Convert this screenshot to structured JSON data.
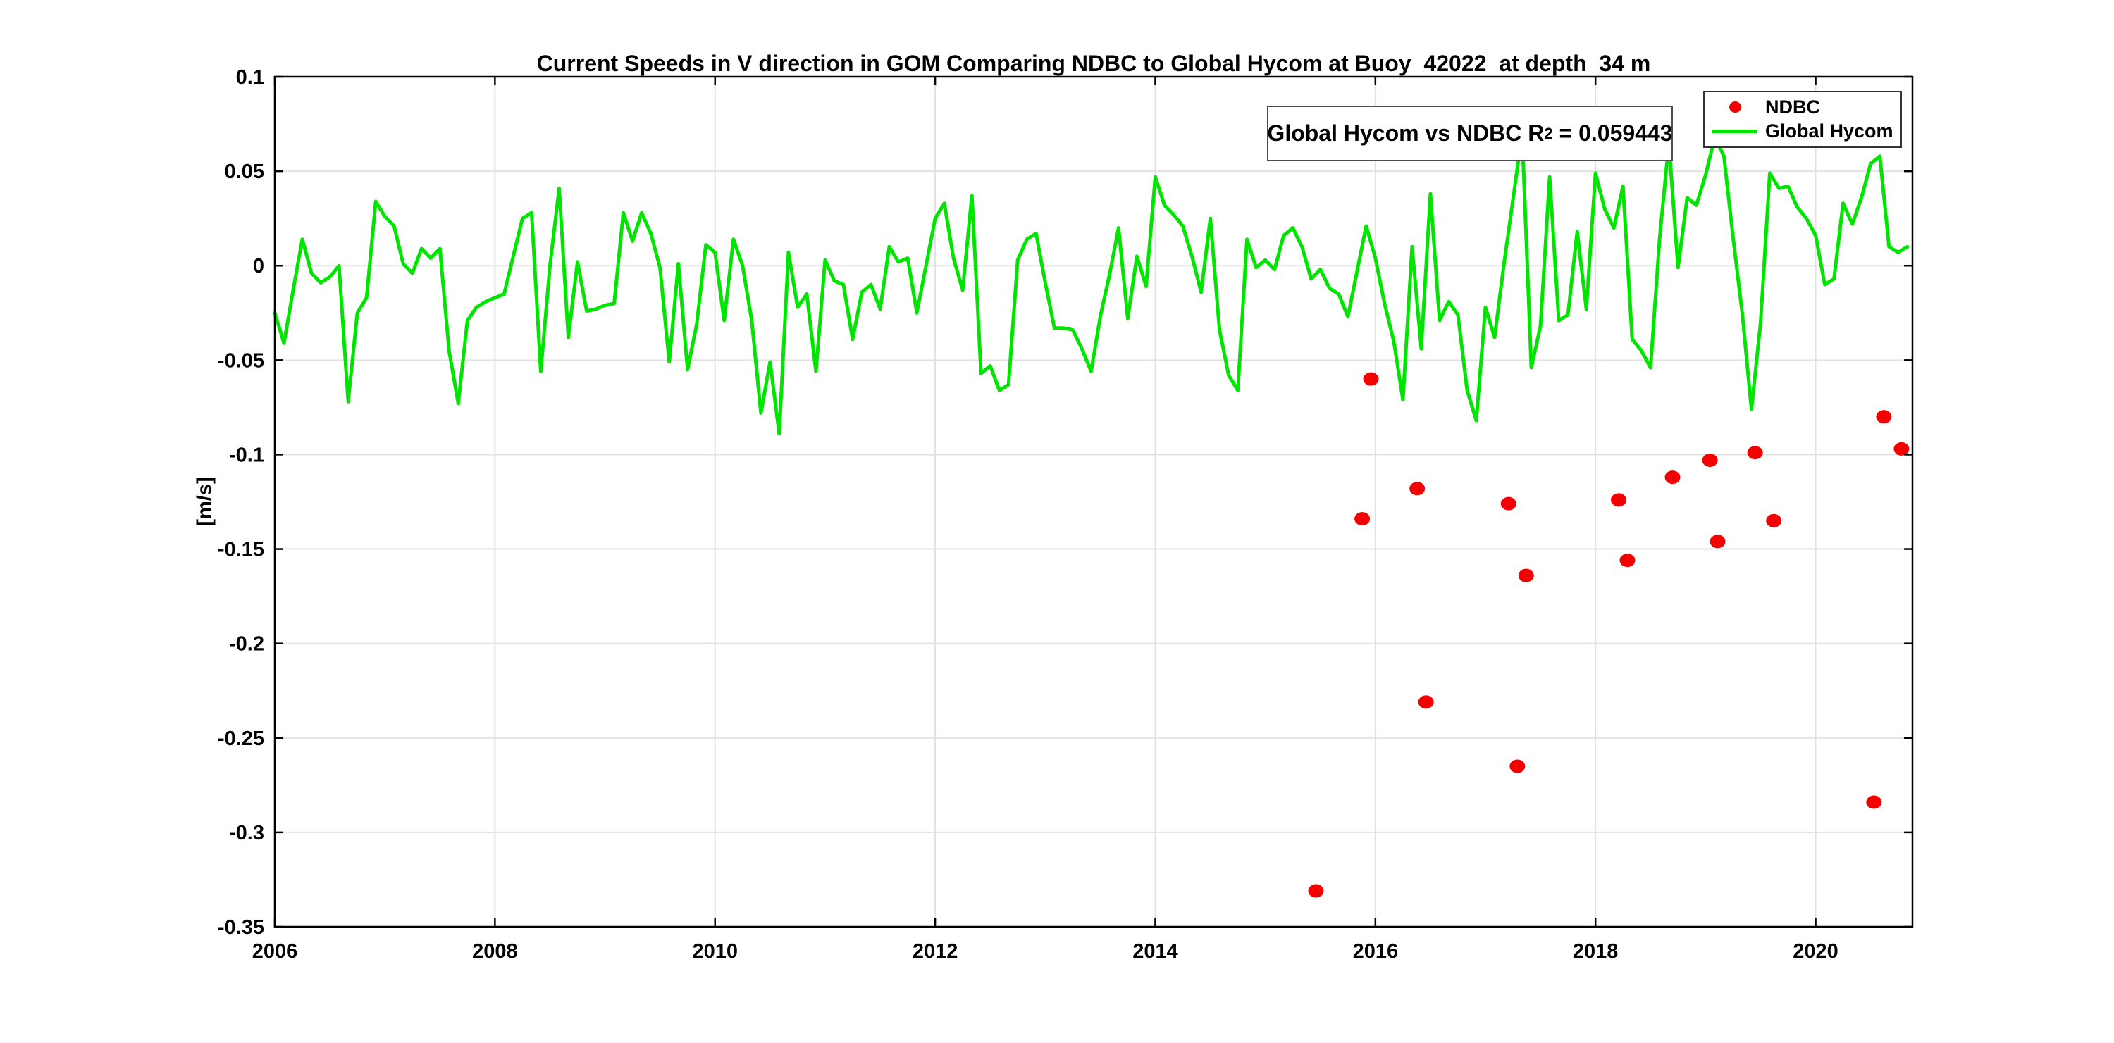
{
  "title": "Current Speeds in V direction in GOM Comparing NDBC to Global Hycom at Buoy  42022  at depth  34 m",
  "axes": {
    "ylabel": "[m/s]",
    "xtick_labels": [
      "2006",
      "2008",
      "2010",
      "2012",
      "2014",
      "2016",
      "2018",
      "2020"
    ],
    "ytick_labels": [
      "0.1",
      "0.05",
      "0",
      "-0.05",
      "-0.1",
      "-0.15",
      "-0.2",
      "-0.25",
      "-0.3",
      "-0.35"
    ]
  },
  "annotation": {
    "prefix": "Global Hycom vs NDBC R",
    "sup": "2",
    "suffix": " = 0.059443"
  },
  "legend": {
    "items": [
      {
        "label": "NDBC",
        "type": "marker",
        "color": "#f40000"
      },
      {
        "label": "Global Hycom",
        "type": "line",
        "color": "#00e500"
      }
    ]
  },
  "colors": {
    "ndbc": "#f40000",
    "hycom": "#00e500",
    "grid": "#e2e2e2",
    "axis": "#000000",
    "text": "#000000"
  },
  "chart_data": {
    "type": "line+scatter",
    "title": "Current Speeds in V direction in GOM Comparing NDBC to Global Hycom at Buoy  42022  at depth  34 m",
    "xlabel": "",
    "ylabel": "[m/s]",
    "xlim": [
      2006,
      2020.88
    ],
    "ylim": [
      -0.35,
      0.1
    ],
    "xticks": [
      2006,
      2008,
      2010,
      2012,
      2014,
      2016,
      2018,
      2020
    ],
    "yticks": [
      0.1,
      0.05,
      0,
      -0.05,
      -0.1,
      -0.15,
      -0.2,
      -0.25,
      -0.3,
      -0.35
    ],
    "grid": true,
    "legend_position": "top-right",
    "annotation": "Global Hycom vs NDBC R^2 = 0.059443",
    "series": [
      {
        "name": "NDBC",
        "type": "scatter",
        "color": "#f40000",
        "points": [
          [
            2015.46,
            -0.331
          ],
          [
            2015.88,
            -0.134
          ],
          [
            2015.96,
            -0.06
          ],
          [
            2016.38,
            -0.118
          ],
          [
            2016.46,
            -0.231
          ],
          [
            2017.21,
            -0.126
          ],
          [
            2017.29,
            -0.265
          ],
          [
            2017.37,
            -0.164
          ],
          [
            2018.21,
            -0.124
          ],
          [
            2018.29,
            -0.156
          ],
          [
            2018.7,
            -0.112
          ],
          [
            2019.04,
            -0.103
          ],
          [
            2019.11,
            -0.146
          ],
          [
            2019.45,
            -0.099
          ],
          [
            2019.62,
            -0.135
          ],
          [
            2020.53,
            -0.284
          ],
          [
            2020.62,
            -0.08
          ],
          [
            2020.78,
            -0.097
          ]
        ]
      },
      {
        "name": "Global Hycom",
        "type": "line",
        "color": "#00e500",
        "x_start": 2006.0,
        "x_step": 0.0833333,
        "values": [
          -0.025,
          -0.041,
          -0.013,
          0.014,
          -0.004,
          -0.009,
          -0.006,
          0.0,
          -0.072,
          -0.025,
          -0.017,
          0.034,
          0.026,
          0.021,
          0.001,
          -0.004,
          0.009,
          0.004,
          0.009,
          -0.045,
          -0.073,
          -0.029,
          -0.022,
          -0.019,
          -0.017,
          -0.015,
          0.005,
          0.025,
          0.028,
          -0.056,
          0.0,
          0.041,
          -0.038,
          0.002,
          -0.024,
          -0.023,
          -0.021,
          -0.02,
          0.028,
          0.013,
          0.028,
          0.017,
          -0.001,
          -0.051,
          0.001,
          -0.055,
          -0.031,
          0.011,
          0.007,
          -0.029,
          0.014,
          0.0,
          -0.029,
          -0.078,
          -0.051,
          -0.089,
          0.007,
          -0.022,
          -0.015,
          -0.056,
          0.003,
          -0.008,
          -0.01,
          -0.039,
          -0.014,
          -0.01,
          -0.023,
          0.01,
          0.002,
          0.004,
          -0.025,
          0.0,
          0.025,
          0.033,
          0.004,
          -0.013,
          0.037,
          -0.057,
          -0.053,
          -0.066,
          -0.063,
          0.003,
          0.014,
          0.017,
          -0.009,
          -0.033,
          -0.033,
          -0.034,
          -0.044,
          -0.056,
          -0.027,
          -0.005,
          0.02,
          -0.028,
          0.005,
          -0.011,
          0.047,
          0.032,
          0.027,
          0.021,
          0.005,
          -0.014,
          0.025,
          -0.034,
          -0.058,
          -0.066,
          0.014,
          -0.001,
          0.003,
          -0.002,
          0.016,
          0.02,
          0.01,
          -0.007,
          -0.002,
          -0.012,
          -0.015,
          -0.027,
          -0.003,
          0.021,
          0.004,
          -0.02,
          -0.04,
          -0.071,
          0.01,
          -0.044,
          0.038,
          -0.029,
          -0.019,
          -0.026,
          -0.066,
          -0.082,
          -0.022,
          -0.038,
          0.0,
          0.035,
          0.07,
          -0.054,
          -0.032,
          0.047,
          -0.029,
          -0.026,
          0.018,
          -0.023,
          0.049,
          0.03,
          0.02,
          0.042,
          -0.039,
          -0.045,
          -0.054,
          0.015,
          0.065,
          -0.001,
          0.036,
          0.032,
          0.048,
          0.068,
          0.058,
          0.015,
          -0.025,
          -0.076,
          -0.03,
          0.049,
          0.041,
          0.042,
          0.031,
          0.025,
          0.016,
          -0.01,
          -0.007,
          0.033,
          0.022,
          0.036,
          0.054,
          0.058,
          0.01,
          0.007,
          0.01
        ]
      }
    ]
  }
}
